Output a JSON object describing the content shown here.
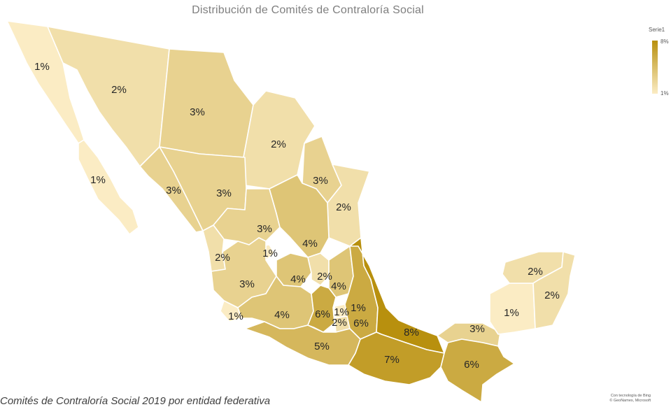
{
  "title": "Distribución de Comités de Contraloría Social",
  "legend": {
    "series_name": "Serie1",
    "max_label": "8%",
    "min_label": "1%",
    "color_max": "#b8900e",
    "color_min": "#fbecc4"
  },
  "caption": "Comités de Contraloría Social 2019 por entidad federativa",
  "credit": {
    "line1": "Con tecnología de Bing",
    "line2": "© GeoNames, Microsoft"
  },
  "map_data": {
    "type": "choropleth",
    "unit": "%",
    "regions": [
      {
        "name": "Baja California",
        "value": 1,
        "label": "1%"
      },
      {
        "name": "Sonora",
        "value": 2,
        "label": "2%"
      },
      {
        "name": "Chihuahua",
        "value": 3,
        "label": "3%"
      },
      {
        "name": "Coahuila",
        "value": 2,
        "label": "2%"
      },
      {
        "name": "Baja California Sur",
        "value": 1,
        "label": "1%"
      },
      {
        "name": "Nuevo León",
        "value": 3,
        "label": "3%"
      },
      {
        "name": "Sinaloa",
        "value": 3,
        "label": "3%"
      },
      {
        "name": "Durango",
        "value": 3,
        "label": "3%"
      },
      {
        "name": "Tamaulipas",
        "value": 2,
        "label": "2%"
      },
      {
        "name": "Zacatecas",
        "value": 3,
        "label": "3%"
      },
      {
        "name": "San Luis Potosí",
        "value": 4,
        "label": "4%"
      },
      {
        "name": "Nayarit",
        "value": 2,
        "label": "2%"
      },
      {
        "name": "Aguascalientes",
        "value": 1,
        "label": "1%"
      },
      {
        "name": "Jalisco",
        "value": 3,
        "label": "3%"
      },
      {
        "name": "Guanajuato",
        "value": 4,
        "label": "4%"
      },
      {
        "name": "Querétaro",
        "value": 2,
        "label": "2%"
      },
      {
        "name": "Hidalgo",
        "value": 4,
        "label": "4%"
      },
      {
        "name": "Colima",
        "value": 1,
        "label": "1%"
      },
      {
        "name": "Michoacán",
        "value": 4,
        "label": "4%"
      },
      {
        "name": "Estado de México",
        "value": 6,
        "label": "6%"
      },
      {
        "name": "Ciudad de México",
        "value": 1,
        "label": "1%"
      },
      {
        "name": "Tlaxcala",
        "value": 1,
        "label": "1%"
      },
      {
        "name": "Morelos",
        "value": 2,
        "label": "2%"
      },
      {
        "name": "Puebla",
        "value": 6,
        "label": "6%"
      },
      {
        "name": "Veracruz",
        "value": 8,
        "label": "8%"
      },
      {
        "name": "Guerrero",
        "value": 5,
        "label": "5%"
      },
      {
        "name": "Oaxaca",
        "value": 7,
        "label": "7%"
      },
      {
        "name": "Tabasco",
        "value": 3,
        "label": "3%"
      },
      {
        "name": "Chiapas",
        "value": 6,
        "label": "6%"
      },
      {
        "name": "Campeche",
        "value": 1,
        "label": "1%"
      },
      {
        "name": "Yucatán",
        "value": 2,
        "label": "2%"
      },
      {
        "name": "Quintana Roo",
        "value": 2,
        "label": "2%"
      }
    ]
  }
}
